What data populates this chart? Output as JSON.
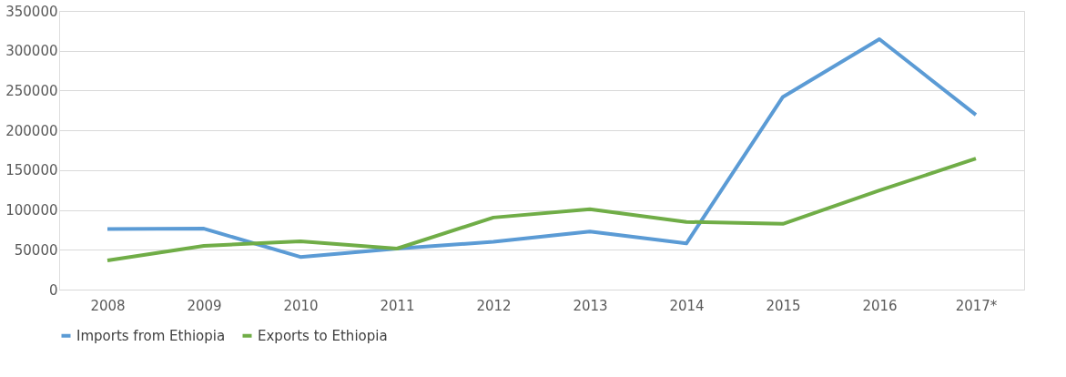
{
  "chart_data": {
    "type": "line",
    "categories": [
      "2008",
      "2009",
      "2010",
      "2011",
      "2012",
      "2013",
      "2014",
      "2015",
      "2016",
      "2017*"
    ],
    "series": [
      {
        "name": "Imports from Ethiopia",
        "color": "#5b9bd5",
        "values": [
          76000,
          76500,
          41000,
          51500,
          60000,
          73000,
          58000,
          242000,
          314500,
          219500
        ]
      },
      {
        "name": "Exports to Ethiopia",
        "color": "#70ad47",
        "values": [
          36500,
          55000,
          60500,
          51500,
          90500,
          101000,
          85000,
          82500,
          124500,
          164500
        ]
      }
    ],
    "ylim": [
      0,
      350000
    ],
    "yticks": [
      0,
      50000,
      100000,
      150000,
      200000,
      250000,
      300000,
      350000
    ],
    "grid": "y",
    "legend": "bottom",
    "marker": "none",
    "line_style": "solid"
  }
}
